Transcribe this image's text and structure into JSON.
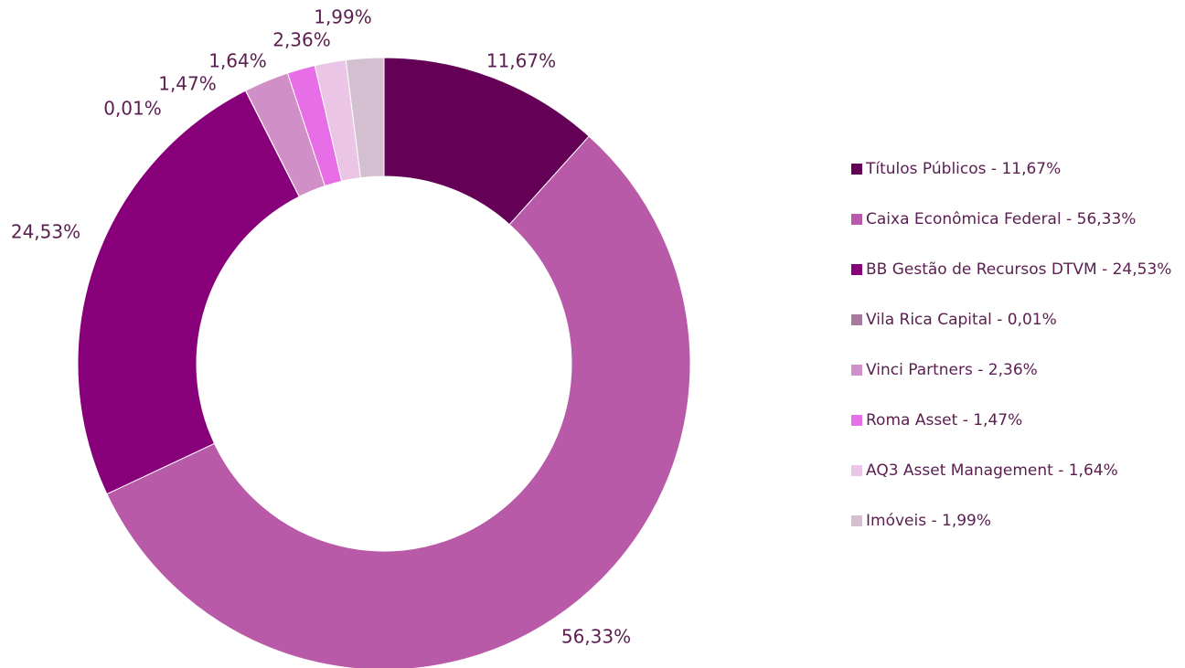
{
  "chart_data": {
    "type": "donut",
    "categories": [
      "Títulos Públicos - 11,67%",
      "Caixa Econômica Federal - 56,33%",
      "BB Gestão de Recursos DTVM - 24,53%",
      "Vila Rica Capital - 0,01%",
      "Vinci Partners - 2,36%",
      "Roma Asset - 1,47%",
      "AQ3 Asset Management - 1,64%",
      "Imóveis - 1,99%"
    ],
    "values": [
      11.67,
      56.33,
      24.53,
      0.01,
      2.36,
      1.47,
      1.64,
      1.99
    ],
    "value_labels": [
      "11,67%",
      "56,33%",
      "24,53%",
      "0,01%",
      "2,36%",
      "1,47%",
      "1,64%",
      "1,99%"
    ],
    "colors": [
      "#640055",
      "#b95aa8",
      "#870079",
      "#a87a9f",
      "#d08fc6",
      "#e86ee8",
      "#ebc5e5",
      "#d4bfd1"
    ],
    "legend": "right"
  }
}
